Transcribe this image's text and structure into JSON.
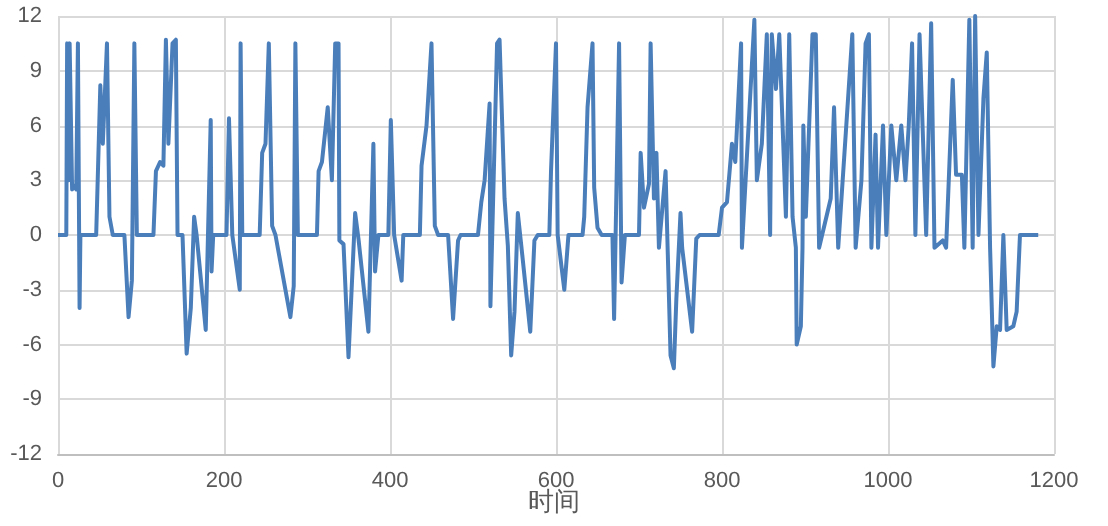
{
  "chart_data": {
    "type": "line",
    "xlabel": "时间",
    "xlim": [
      0,
      1200
    ],
    "xticks": [
      0,
      200,
      400,
      600,
      800,
      1000,
      1200
    ],
    "ylim": [
      -12,
      12
    ],
    "yticks": [
      -12,
      -9,
      -6,
      -3,
      0,
      3,
      6,
      9,
      12
    ],
    "grid": true,
    "marker": "none",
    "line_style": "solid",
    "x": [
      0,
      10,
      11,
      13,
      14,
      17,
      20,
      22,
      24,
      26,
      27,
      46,
      51,
      54,
      59,
      62,
      66,
      80,
      85,
      89,
      92,
      95,
      115,
      118,
      123,
      127,
      130,
      133,
      138,
      142,
      144,
      150,
      155,
      160,
      164,
      167,
      178,
      184,
      185,
      187,
      203,
      206,
      210,
      219,
      220,
      222,
      243,
      246,
      250,
      254,
      258,
      262,
      280,
      284,
      286,
      289,
      312,
      314,
      318,
      325,
      330,
      334,
      338,
      339,
      344,
      350,
      358,
      362,
      374,
      380,
      382,
      386,
      398,
      401,
      405,
      414,
      416,
      436,
      438,
      444,
      450,
      454,
      458,
      470,
      476,
      482,
      485,
      506,
      510,
      514,
      520,
      521,
      529,
      532,
      538,
      542,
      546,
      550,
      554,
      558,
      569,
      574,
      578,
      592,
      594,
      600,
      602,
      610,
      615,
      632,
      634,
      638,
      644,
      646,
      650,
      655,
      668,
      670,
      676,
      679,
      683,
      700,
      702,
      706,
      712,
      714,
      718,
      721,
      724,
      732,
      738,
      742,
      745,
      750,
      752,
      764,
      769,
      773,
      796,
      800,
      806,
      812,
      816,
      823,
      824,
      839,
      842,
      848,
      854,
      858,
      860,
      865,
      869,
      873,
      877,
      881,
      885,
      889,
      890,
      895,
      897,
      898,
      901,
      909,
      913,
      917,
      931,
      935,
      940,
      957,
      961,
      968,
      973,
      977,
      980,
      985,
      988,
      994,
      998,
      1004,
      1010,
      1016,
      1021,
      1025,
      1029,
      1033,
      1038,
      1046,
      1052,
      1056,
      1066,
      1070,
      1078,
      1082,
      1089,
      1092,
      1098,
      1102,
      1105,
      1109,
      1115,
      1119,
      1123,
      1127,
      1131,
      1135,
      1139,
      1143,
      1151,
      1155,
      1159,
      1163,
      1181
    ],
    "series": [
      {
        "color": "#4a7ebb",
        "values": [
          0,
          0,
          10.5,
          3,
          10.5,
          2.5,
          2.7,
          2.5,
          10.5,
          -4,
          0,
          0,
          8.2,
          5,
          10.5,
          1,
          0,
          0,
          -4.5,
          -2.5,
          10.5,
          0,
          0,
          3.5,
          4,
          3.8,
          10.7,
          5,
          10.5,
          10.7,
          0,
          0,
          -6.5,
          -4,
          1,
          0,
          -5.2,
          6.3,
          -2,
          0,
          0,
          6.4,
          0,
          -3,
          10.5,
          0,
          0,
          4.5,
          5,
          10.5,
          0.5,
          0,
          -4.5,
          -2.8,
          10.5,
          0,
          0,
          3.5,
          4,
          7,
          3,
          10.5,
          10.5,
          -0.3,
          -0.5,
          -6.7,
          1.2,
          -0.2,
          -5.3,
          5,
          -2,
          0,
          0,
          6.3,
          0,
          -2.5,
          0,
          0,
          3.8,
          6,
          10.5,
          0.5,
          0,
          0,
          -4.6,
          -0.3,
          0,
          0,
          1.8,
          3,
          7.2,
          -3.9,
          10.5,
          10.7,
          2,
          -0.6,
          -6.6,
          -4.2,
          1.2,
          -0.5,
          -5.3,
          -0.3,
          0,
          0,
          3.5,
          10.5,
          0,
          -3,
          0,
          0,
          1,
          7,
          10.5,
          2.6,
          0.4,
          0,
          0,
          -4.6,
          10.5,
          -2.6,
          0,
          0,
          4.5,
          1.5,
          2.8,
          10.5,
          2,
          4.5,
          -0.7,
          3.5,
          -6.6,
          -7.3,
          -3.5,
          1.2,
          -0.7,
          -5.3,
          -0.2,
          0,
          0,
          1.5,
          1.8,
          5,
          4,
          10.5,
          -0.7,
          11.8,
          3,
          5,
          11,
          0,
          11,
          8,
          11,
          6,
          1,
          11,
          1,
          -0.7,
          -6,
          -5,
          -0.7,
          6,
          1,
          11,
          11,
          -0.7,
          2,
          7,
          -0.7,
          11,
          -0.7,
          3,
          10.5,
          11,
          -0.7,
          5.5,
          -0.7,
          6,
          0,
          6,
          3,
          6,
          3,
          6,
          10.5,
          0,
          11,
          0,
          11.6,
          -0.7,
          -0.3,
          -0.7,
          8.5,
          3.3,
          3.3,
          -0.7,
          11.8,
          -0.7,
          12,
          0,
          7.5,
          10,
          -0.7,
          -7.2,
          -5,
          -5.2,
          0,
          -5.2,
          -5,
          -4.2,
          0,
          0,
          0
        ]
      }
    ]
  }
}
